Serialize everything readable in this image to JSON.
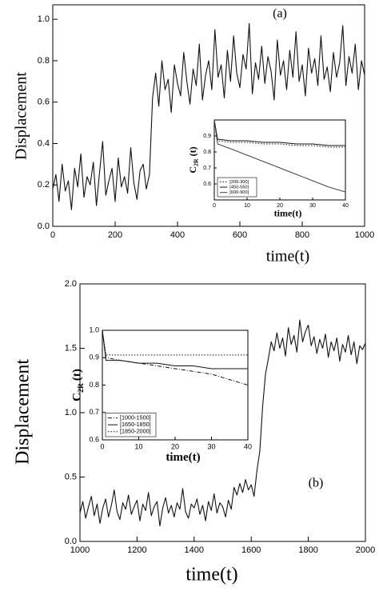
{
  "chart_data": [
    {
      "type": "line",
      "title": "(a)",
      "xlabel": "time(t)",
      "ylabel": "Displacement",
      "x": [
        0,
        10,
        20,
        30,
        40,
        50,
        60,
        70,
        80,
        90,
        100,
        110,
        120,
        130,
        140,
        150,
        160,
        170,
        180,
        190,
        200,
        210,
        220,
        230,
        240,
        250,
        260,
        270,
        280,
        290,
        300,
        310,
        320,
        330,
        340,
        350,
        360,
        370,
        380,
        390,
        400,
        410,
        420,
        430,
        440,
        450,
        460,
        470,
        480,
        490,
        500,
        510,
        520,
        530,
        540,
        550,
        560,
        570,
        580,
        590,
        600,
        610,
        620,
        630,
        640,
        650,
        660,
        670,
        680,
        690,
        700,
        710,
        720,
        730,
        740,
        750,
        760,
        770,
        780,
        790,
        800,
        810,
        820,
        830,
        840,
        850,
        860,
        870,
        880,
        890,
        900,
        910,
        920,
        930,
        940,
        950,
        960,
        970,
        980,
        990,
        1000
      ],
      "series": [
        {
          "color": "#111111",
          "values": [
            0.18,
            0.25,
            0.12,
            0.3,
            0.17,
            0.22,
            0.08,
            0.28,
            0.19,
            0.35,
            0.14,
            0.24,
            0.2,
            0.31,
            0.1,
            0.26,
            0.41,
            0.15,
            0.22,
            0.28,
            0.12,
            0.33,
            0.19,
            0.24,
            0.16,
            0.38,
            0.21,
            0.13,
            0.27,
            0.3,
            0.18,
            0.25,
            0.62,
            0.74,
            0.58,
            0.8,
            0.66,
            0.71,
            0.55,
            0.78,
            0.69,
            0.63,
            0.84,
            0.7,
            0.59,
            0.76,
            0.68,
            0.88,
            0.61,
            0.73,
            0.8,
            0.66,
            0.95,
            0.72,
            0.78,
            0.62,
            0.85,
            0.7,
            0.92,
            0.74,
            0.67,
            0.83,
            0.76,
            0.98,
            0.64,
            0.79,
            0.71,
            0.87,
            0.69,
            0.82,
            0.75,
            0.61,
            0.9,
            0.73,
            0.8,
            0.66,
            0.85,
            0.72,
            0.94,
            0.7,
            0.78,
            0.63,
            0.86,
            0.74,
            0.81,
            0.68,
            0.92,
            0.71,
            0.77,
            0.65,
            0.84,
            0.72,
            0.79,
            0.97,
            0.68,
            0.82,
            0.74,
            0.88,
            0.66,
            0.8,
            0.73
          ]
        }
      ],
      "xlim": [
        0,
        1000
      ],
      "xticks": [
        0,
        200,
        400,
        600,
        800,
        1000
      ],
      "ylim": [
        0,
        1.07
      ],
      "yticks": [
        {
          "value": 0,
          "label": "0.0"
        },
        0.2,
        0.4,
        0.6,
        0.8,
        {
          "value": 1,
          "label": "1.0"
        }
      ]
    },
    {
      "type": "line",
      "xlabel": "time(t)",
      "ylabel": "C",
      "ylabel_sub": "2R",
      "ylabel_end": "(t)",
      "x": [
        0,
        1,
        5,
        10,
        15,
        20,
        25,
        30,
        35,
        40
      ],
      "series": [
        {
          "name": "[200-300]",
          "color": "#111111",
          "dash": "dotted",
          "values": [
            1.0,
            0.87,
            0.86,
            0.86,
            0.85,
            0.85,
            0.84,
            0.84,
            0.83,
            0.83
          ]
        },
        {
          "name": "[450-550]",
          "color": "#111111",
          "dash": "solid",
          "values": [
            1.0,
            0.88,
            0.87,
            0.87,
            0.86,
            0.86,
            0.85,
            0.85,
            0.84,
            0.84
          ]
        },
        {
          "name": "[600-900]",
          "color": "#444444",
          "dash": "solid",
          "values": [
            1.0,
            0.85,
            0.82,
            0.78,
            0.74,
            0.7,
            0.66,
            0.62,
            0.58,
            0.55
          ]
        }
      ],
      "xlim": [
        0,
        40
      ],
      "xticks": [
        0,
        10,
        20,
        30,
        40
      ],
      "ylim": [
        0.5,
        1.0
      ],
      "yticks": [
        0.6,
        0.7,
        0.8,
        0.9
      ],
      "legend": "lower left"
    },
    {
      "type": "line",
      "title": "(b)",
      "xlabel": "time(t)",
      "ylabel": "Displacement",
      "x": [
        1000,
        1010,
        1020,
        1030,
        1040,
        1050,
        1060,
        1070,
        1080,
        1090,
        1100,
        1110,
        1120,
        1130,
        1140,
        1150,
        1160,
        1170,
        1180,
        1190,
        1200,
        1210,
        1220,
        1230,
        1240,
        1250,
        1260,
        1270,
        1280,
        1290,
        1300,
        1310,
        1320,
        1330,
        1340,
        1350,
        1360,
        1370,
        1380,
        1390,
        1400,
        1410,
        1420,
        1430,
        1440,
        1450,
        1460,
        1470,
        1480,
        1490,
        1500,
        1510,
        1520,
        1530,
        1540,
        1550,
        1560,
        1570,
        1580,
        1590,
        1600,
        1610,
        1620,
        1630,
        1640,
        1650,
        1660,
        1670,
        1680,
        1690,
        1700,
        1710,
        1720,
        1730,
        1740,
        1750,
        1760,
        1770,
        1780,
        1790,
        1800,
        1810,
        1820,
        1830,
        1840,
        1850,
        1860,
        1870,
        1880,
        1890,
        1900,
        1910,
        1920,
        1930,
        1940,
        1950,
        1960,
        1970,
        1980,
        1990,
        2000
      ],
      "series": [
        {
          "color": "#111111",
          "values": [
            0.22,
            0.31,
            0.18,
            0.27,
            0.35,
            0.2,
            0.29,
            0.14,
            0.26,
            0.33,
            0.19,
            0.28,
            0.4,
            0.23,
            0.17,
            0.3,
            0.25,
            0.36,
            0.21,
            0.27,
            0.32,
            0.16,
            0.29,
            0.24,
            0.38,
            0.2,
            0.27,
            0.31,
            0.12,
            0.26,
            0.34,
            0.22,
            0.28,
            0.19,
            0.3,
            0.25,
            0.41,
            0.23,
            0.18,
            0.29,
            0.26,
            0.33,
            0.21,
            0.28,
            0.16,
            0.31,
            0.24,
            0.37,
            0.22,
            0.3,
            0.27,
            0.19,
            0.32,
            0.25,
            0.42,
            0.36,
            0.45,
            0.38,
            0.48,
            0.4,
            0.44,
            0.35,
            0.55,
            0.7,
            1.05,
            1.3,
            1.42,
            1.55,
            1.48,
            1.62,
            1.5,
            1.58,
            1.44,
            1.66,
            1.53,
            1.6,
            1.47,
            1.72,
            1.55,
            1.63,
            1.68,
            1.52,
            1.59,
            1.46,
            1.57,
            1.5,
            1.61,
            1.43,
            1.55,
            1.48,
            1.58,
            1.4,
            1.53,
            1.47,
            1.6,
            1.45,
            1.55,
            1.38,
            1.52,
            1.49,
            1.54
          ]
        }
      ],
      "xlim": [
        1000,
        2000
      ],
      "xticks": [
        1000,
        1200,
        1400,
        1600,
        1800,
        2000
      ],
      "ylim": [
        0,
        2
      ],
      "yticks": [
        {
          "value": 0,
          "label": "0.0"
        },
        0.5,
        {
          "value": 1,
          "label": "1.0"
        },
        1.5,
        {
          "value": 2,
          "label": "2.0"
        }
      ]
    },
    {
      "type": "line",
      "xlabel": "time(t)",
      "ylabel": "C",
      "ylabel_sub": "2R",
      "ylabel_end": "(t)",
      "x": [
        0,
        1,
        5,
        10,
        15,
        20,
        25,
        30,
        35,
        40
      ],
      "series": [
        {
          "name": "[1000-1500]",
          "color": "#111111",
          "dash": "dashdot",
          "values": [
            1.0,
            0.9,
            0.89,
            0.88,
            0.87,
            0.86,
            0.85,
            0.84,
            0.82,
            0.8
          ]
        },
        {
          "name": "[1650-1850]",
          "color": "#111111",
          "dash": "solid",
          "values": [
            1.0,
            0.89,
            0.89,
            0.88,
            0.88,
            0.87,
            0.87,
            0.86,
            0.86,
            0.86
          ]
        },
        {
          "name": "[1850-2000]",
          "color": "#111111",
          "dash": "dotted",
          "values": [
            1.0,
            0.91,
            0.91,
            0.91,
            0.91,
            0.91,
            0.91,
            0.91,
            0.91,
            0.91
          ]
        }
      ],
      "xlim": [
        0,
        40
      ],
      "xticks": [
        0,
        10,
        20,
        30,
        40
      ],
      "ylim": [
        0.6,
        1.0
      ],
      "yticks": [
        0.6,
        0.7,
        0.8,
        0.9,
        {
          "value": 1,
          "label": "1.0"
        }
      ],
      "legend": "lower left"
    }
  ]
}
